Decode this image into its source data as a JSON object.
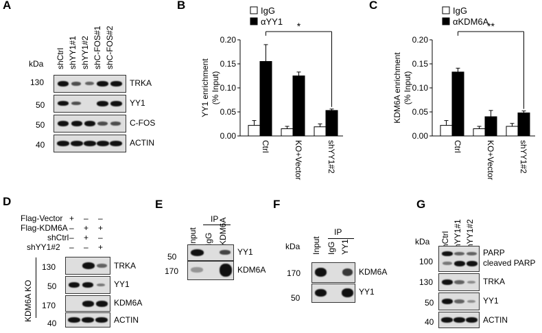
{
  "panels": {
    "A": {
      "letter": "A",
      "kda": "kDa",
      "lanes": [
        "shCtrl",
        "shYY1#1",
        "shYY1#2",
        "shC-FOS#1",
        "shC-FOS#2"
      ],
      "blots": [
        {
          "marker": "130",
          "label": "TRKA"
        },
        {
          "marker": "50",
          "label": "YY1"
        },
        {
          "marker": "50",
          "label": "C-FOS"
        },
        {
          "marker": "40",
          "label": "ACTIN"
        }
      ]
    },
    "B": {
      "letter": "B"
    },
    "C": {
      "letter": "C"
    },
    "D": {
      "letter": "D",
      "conditions": [
        {
          "name": "Flag-Vector",
          "marks": [
            "+",
            "–",
            "–"
          ]
        },
        {
          "name": "Flag-KDM6A",
          "marks": [
            "–",
            "+",
            "+"
          ]
        },
        {
          "name": "shCtrl",
          "marks": [
            "–",
            "+",
            "–"
          ]
        },
        {
          "name": "shYY1#2",
          "marks": [
            "–",
            "–",
            "+"
          ]
        }
      ],
      "side_label": "KDM6A KO",
      "blots": [
        {
          "marker": "130",
          "label": "TRKA"
        },
        {
          "marker": "50",
          "label": "YY1"
        },
        {
          "marker": "170",
          "label": "KDM6A"
        },
        {
          "marker": "40",
          "label": "ACTIN"
        }
      ]
    },
    "E": {
      "letter": "E",
      "ip": "IP",
      "lanes": [
        "Input",
        "IgG",
        "KDM6A"
      ],
      "blots": [
        {
          "marker": "50",
          "label": "YY1"
        },
        {
          "marker": "170",
          "label": "KDM6A"
        }
      ]
    },
    "F": {
      "letter": "F",
      "kda": "kDa",
      "ip": "IP",
      "lanes": [
        "Input",
        "IgG",
        "YY1"
      ],
      "blots": [
        {
          "marker": "170",
          "label": "KDM6A"
        },
        {
          "marker": "50",
          "label": "YY1"
        }
      ]
    },
    "G": {
      "letter": "G",
      "kda": "kDa",
      "lanes": [
        "shCtrl",
        "shYY1#1",
        "shYY1#2"
      ],
      "blots": [
        {
          "marker": "100",
          "label": "PARP",
          "label2": "cleaved PARP"
        },
        {
          "marker": "130",
          "label": "TRKA"
        },
        {
          "marker": "50",
          "label": "YY1"
        },
        {
          "marker": "40",
          "label": "ACTIN"
        }
      ]
    }
  },
  "chart_data": [
    {
      "type": "bar",
      "panel": "B",
      "categories": [
        "Ctrl",
        "KO+Vector",
        "shYY1#2"
      ],
      "series": [
        {
          "name": "IgG",
          "color": "#ffffff",
          "values": [
            0.022,
            0.015,
            0.019
          ],
          "errors": [
            0.01,
            0.005,
            0.006
          ]
        },
        {
          "name": "αYY1",
          "color": "#000000",
          "values": [
            0.155,
            0.125,
            0.053
          ],
          "errors": [
            0.035,
            0.008,
            0.003
          ]
        }
      ],
      "ylabel": "YY1 enrichment (% Input)",
      "ylabel_lines": [
        "YY1 enrichment",
        "(% Input)"
      ],
      "ylim": [
        0,
        0.2
      ],
      "yticks": [
        "0.00",
        "0.05",
        "0.10",
        "0.15",
        "0.20"
      ],
      "significance": "*",
      "legend": "top-left"
    },
    {
      "type": "bar",
      "panel": "C",
      "categories": [
        "Ctrl",
        "KO+Vector",
        "shYY1#2"
      ],
      "series": [
        {
          "name": "IgG",
          "color": "#ffffff",
          "values": [
            0.022,
            0.015,
            0.02
          ],
          "errors": [
            0.01,
            0.005,
            0.006
          ]
        },
        {
          "name": "αKDM6A",
          "color": "#000000",
          "values": [
            0.133,
            0.04,
            0.048
          ],
          "errors": [
            0.008,
            0.013,
            0.004
          ]
        }
      ],
      "ylabel": "KDM6A enrichment (% Input)",
      "ylabel_lines": [
        "KDM6A enrichment",
        "(% Input)"
      ],
      "ylim": [
        0,
        0.2
      ],
      "yticks": [
        "0.00",
        "0.05",
        "0.10",
        "0.15",
        "0.20"
      ],
      "significance": "**",
      "legend": "top-left"
    }
  ]
}
